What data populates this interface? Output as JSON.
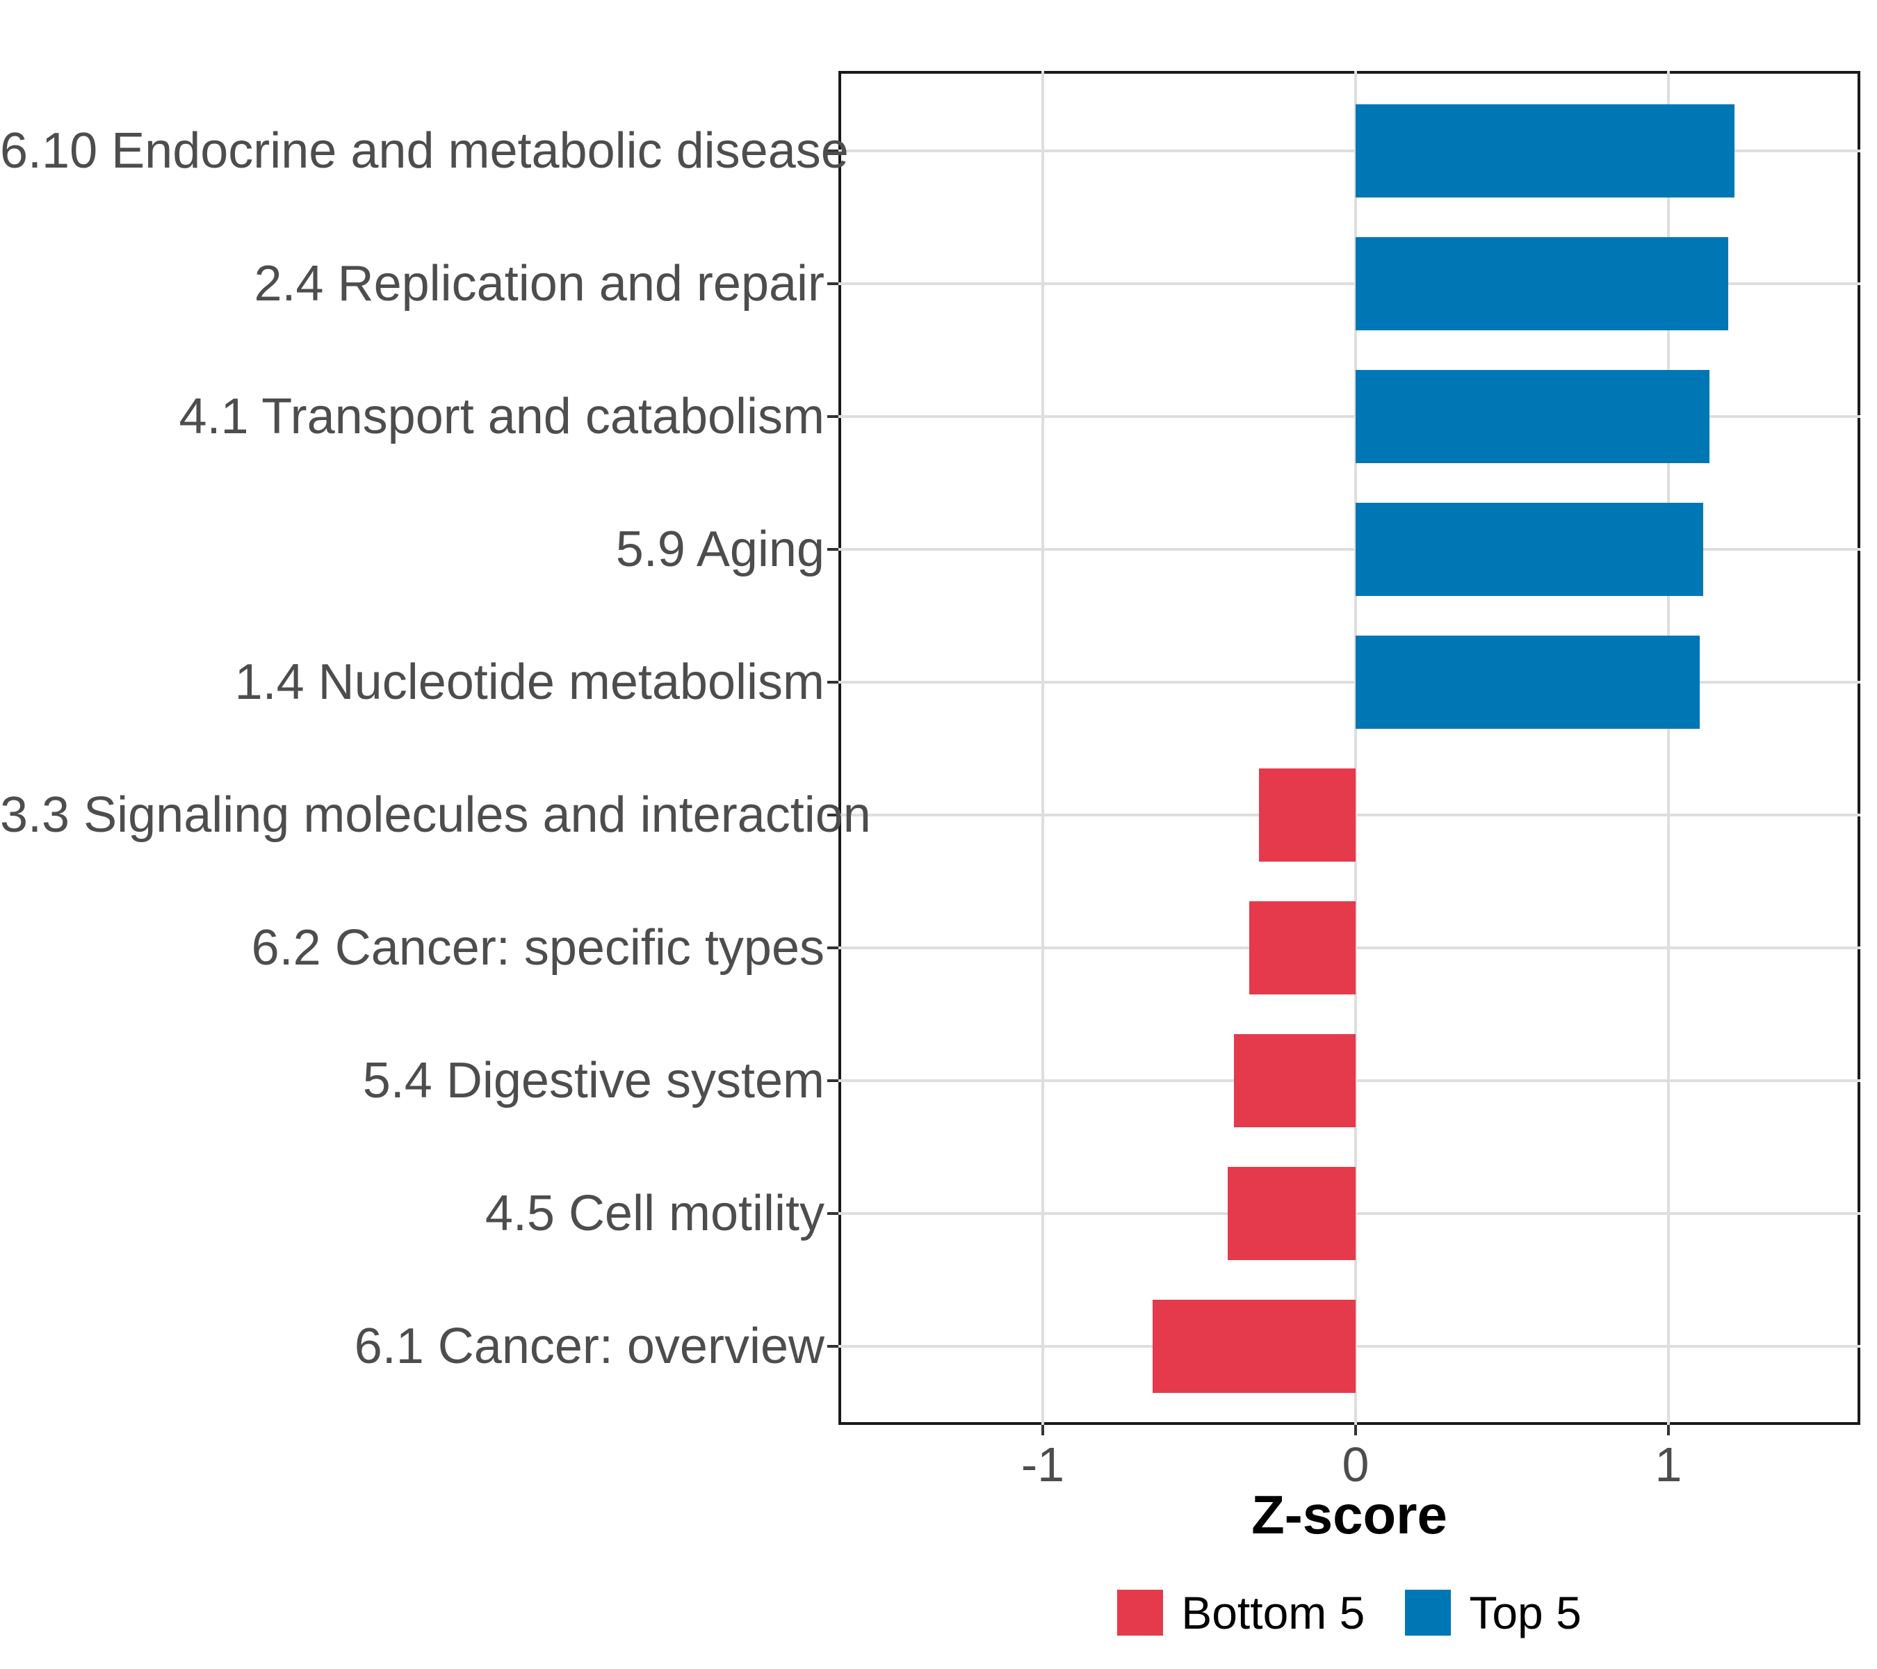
{
  "chart_data": {
    "type": "bar",
    "orientation": "horizontal",
    "title": "",
    "xlabel": "Z-score",
    "ylabel": "",
    "categories": [
      "6.10 Endocrine and metabolic disease",
      "2.4 Replication and repair",
      "4.1 Transport and catabolism",
      "5.9 Aging",
      "1.4 Nucleotide metabolism",
      "3.3 Signaling molecules and interaction",
      "6.2 Cancer: specific types",
      "5.4 Digestive system",
      "4.5 Cell motility",
      "6.1 Cancer: overview"
    ],
    "values": [
      1.21,
      1.19,
      1.13,
      1.11,
      1.1,
      -0.31,
      -0.34,
      -0.39,
      -0.41,
      -0.65
    ],
    "groups": [
      "Top 5",
      "Top 5",
      "Top 5",
      "Top 5",
      "Top 5",
      "Bottom 5",
      "Bottom 5",
      "Bottom 5",
      "Bottom 5",
      "Bottom 5"
    ],
    "x_ticks": [
      -1,
      0,
      1
    ],
    "x_tick_labels": [
      "-1",
      "0",
      "1"
    ],
    "xlim": [
      -1.65,
      1.61
    ],
    "bar_width_fraction": 0.7,
    "grid": "major horizontal at categories, vertical at x ticks",
    "legend_position": "bottom",
    "legend": {
      "entries": [
        {
          "label": "Bottom 5",
          "color": "#E43A4C"
        },
        {
          "label": "Top 5",
          "color": "#0077B5"
        }
      ]
    },
    "colors": {
      "top5_bar": "#0077B5",
      "bottom5_bar": "#E43A4C",
      "gridline": "#dedede",
      "panel_border": "#1a1a1a",
      "axis_text": "#4d4d4d",
      "axis_title": "#000000",
      "background": "#ffffff"
    }
  }
}
